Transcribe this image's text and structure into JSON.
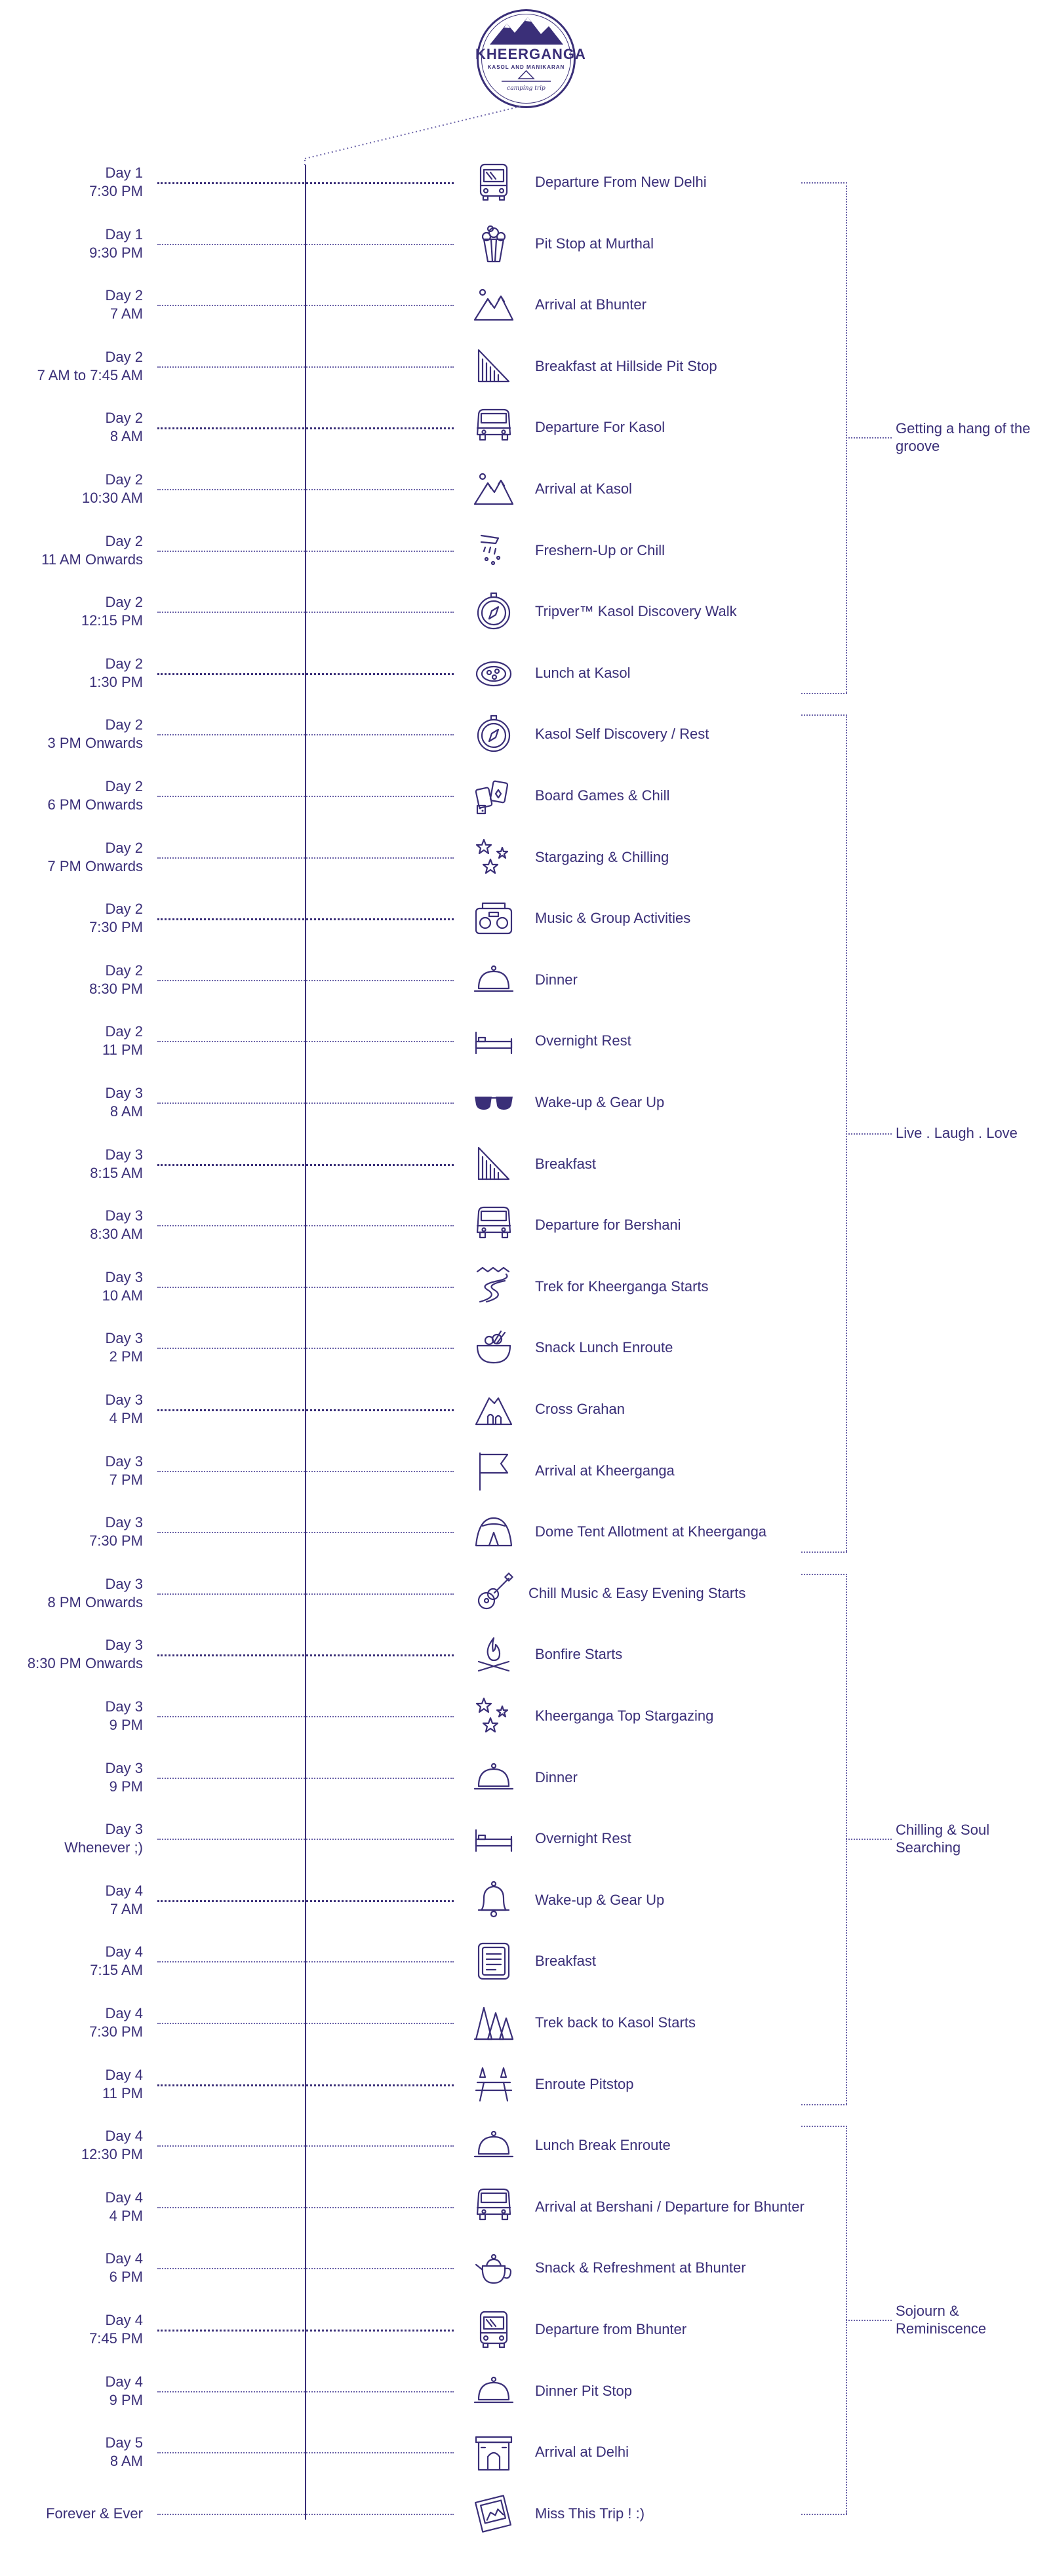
{
  "logo": {
    "title": "KHEERGANGA",
    "subtitle": "KASOL AND MANIKARAN",
    "tagline": "camping trip"
  },
  "colors": {
    "ink": "#3a2f78",
    "dots": "#6b63a8",
    "background": "#ffffff"
  },
  "events": [
    {
      "day": "Day 1",
      "time": "7:30 PM",
      "label": "Departure From New Delhi",
      "icon": "bus-icon"
    },
    {
      "day": "Day 1",
      "time": "9:30 PM",
      "label": "Pit Stop at Murthal",
      "icon": "popcorn-icon"
    },
    {
      "day": "Day 2",
      "time": "7 AM",
      "label": "Arrival at Bhunter",
      "icon": "mountains-icon"
    },
    {
      "day": "Day 2",
      "time": "7 AM to 7:45 AM",
      "label": "Breakfast at Hillside Pit Stop",
      "icon": "sandwich-icon"
    },
    {
      "day": "Day 2",
      "time": "8 AM",
      "label": "Departure For Kasol",
      "icon": "van-icon"
    },
    {
      "day": "Day 2",
      "time": "10:30 AM",
      "label": "Arrival at Kasol",
      "icon": "mountains-icon"
    },
    {
      "day": "Day 2",
      "time": "11 AM Onwards",
      "label": "Freshern-Up or Chill",
      "icon": "shower-icon"
    },
    {
      "day": "Day 2",
      "time": "12:15 PM",
      "label": "Tripver™ Kasol Discovery Walk",
      "icon": "compass-icon"
    },
    {
      "day": "Day 2",
      "time": "1:30 PM",
      "label": "Lunch at Kasol",
      "icon": "pizza-icon"
    },
    {
      "day": "Day 2",
      "time": "3 PM Onwards",
      "label": "Kasol Self Discovery / Rest",
      "icon": "compass-icon"
    },
    {
      "day": "Day 2",
      "time": "6 PM Onwards",
      "label": "Board Games & Chill",
      "icon": "cards-icon"
    },
    {
      "day": "Day 2",
      "time": "7 PM Onwards",
      "label": "Stargazing & Chilling",
      "icon": "stars-icon"
    },
    {
      "day": "Day 2",
      "time": "7:30 PM",
      "label": "Music & Group Activities",
      "icon": "radio-icon"
    },
    {
      "day": "Day 2",
      "time": "8:30 PM",
      "label": "Dinner",
      "icon": "cloche-icon"
    },
    {
      "day": "Day 2",
      "time": "11 PM",
      "label": "Overnight Rest",
      "icon": "bed-icon"
    },
    {
      "day": "Day 3",
      "time": "8 AM",
      "label": "Wake-up & Gear Up",
      "icon": "sunglasses-icon"
    },
    {
      "day": "Day 3",
      "time": "8:15 AM",
      "label": "Breakfast",
      "icon": "sandwich-icon"
    },
    {
      "day": "Day 3",
      "time": "8:30 AM",
      "label": "Departure for Bershani",
      "icon": "van-icon"
    },
    {
      "day": "Day 3",
      "time": "10 AM",
      "label": "Trek for Kheerganga Starts",
      "icon": "trail-icon"
    },
    {
      "day": "Day 3",
      "time": "2 PM",
      "label": "Snack Lunch Enroute",
      "icon": "bowl-icon"
    },
    {
      "day": "Day 3",
      "time": "4 PM",
      "label": "Cross Grahan",
      "icon": "hut-icon"
    },
    {
      "day": "Day 3",
      "time": "7 PM",
      "label": "Arrival at Kheerganga",
      "icon": "flag-icon"
    },
    {
      "day": "Day 3",
      "time": "7:30 PM",
      "label": "Dome Tent Allotment at Kheerganga",
      "icon": "tent-icon"
    },
    {
      "day": "Day 3",
      "time": "8 PM Onwards",
      "label": "Chill Music & Easy Evening Starts",
      "icon": "guitar-icon"
    },
    {
      "day": "Day 3",
      "time": "8:30 PM Onwards",
      "label": "Bonfire Starts",
      "icon": "bonfire-icon"
    },
    {
      "day": "Day 3",
      "time": "9 PM",
      "label": "Kheerganga Top Stargazing",
      "icon": "stars-icon"
    },
    {
      "day": "Day 3",
      "time": "9 PM",
      "label": "Dinner",
      "icon": "cloche-icon"
    },
    {
      "day": "Day 3",
      "time": "Whenever ;)",
      "label": "Overnight Rest",
      "icon": "bed-icon"
    },
    {
      "day": "Day 4",
      "time": "7 AM",
      "label": "Wake-up & Gear Up",
      "icon": "bell-icon"
    },
    {
      "day": "Day 4",
      "time": "7:15 AM",
      "label": "Breakfast",
      "icon": "menu-icon"
    },
    {
      "day": "Day 4",
      "time": "7:30 PM",
      "label": "Trek back to Kasol Starts",
      "icon": "forest-icon"
    },
    {
      "day": "Day 4",
      "time": "11 PM",
      "label": "Enroute Pitstop",
      "icon": "picnic-icon"
    },
    {
      "day": "Day 4",
      "time": "12:30 PM",
      "label": "Lunch Break Enroute",
      "icon": "cloche-icon"
    },
    {
      "day": "Day 4",
      "time": "4 PM",
      "label": "Arrival at Bershani / Departure for Bhunter",
      "icon": "van-icon"
    },
    {
      "day": "Day 4",
      "time": "6 PM",
      "label": "Snack & Refreshment at Bhunter",
      "icon": "teapot-icon"
    },
    {
      "day": "Day 4",
      "time": "7:45 PM",
      "label": "Departure from Bhunter",
      "icon": "bus-icon"
    },
    {
      "day": "Day 4",
      "time": "9 PM",
      "label": "Dinner Pit Stop",
      "icon": "cloche-icon"
    },
    {
      "day": "Day 5",
      "time": "8 AM",
      "label": "Arrival at Delhi",
      "icon": "gate-icon"
    },
    {
      "day": "",
      "time": "Forever & Ever",
      "label": "Miss This Trip ! :)",
      "icon": "photo-icon"
    }
  ],
  "groups": [
    {
      "name": "Getting a hang of the groove",
      "from": 0,
      "to": 8
    },
    {
      "name": "Live . Laugh . Love",
      "from": 9,
      "to": 22
    },
    {
      "name": "Chilling & Soul Searching",
      "from": 23,
      "to": 31
    },
    {
      "name": "Sojourn & Reminiscence",
      "from": 32,
      "to": 38
    }
  ]
}
